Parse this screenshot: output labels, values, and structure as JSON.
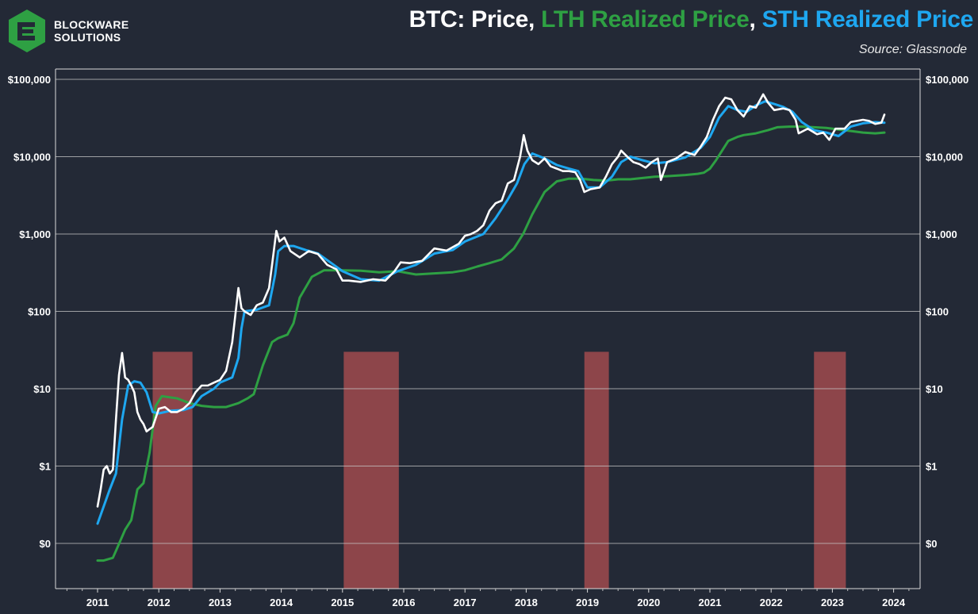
{
  "brand": {
    "line1": "BLOCKWARE",
    "line2": "SOLUTIONS"
  },
  "header": {
    "title_prefix": "BTC: Price, ",
    "lth_label": "LTH Realized Price",
    "comma": ", ",
    "sth_label": "STH Realized Price",
    "source": "Source: Glassnode"
  },
  "colors": {
    "background": "#232936",
    "price": "#ffffff",
    "lth": "#2ea043",
    "sth": "#1ea7f0",
    "shade": "#a04a4e",
    "grid": "#c8c8c8"
  },
  "chart_data": {
    "type": "line",
    "title": "BTC: Price, LTH Realized Price, STH Realized Price",
    "xlabel": "",
    "ylabel": "",
    "yscale": "log",
    "ylim": [
      0.03,
      300000
    ],
    "xlim": [
      2010.35,
      2024.5
    ],
    "grid": true,
    "y_ticks": [
      {
        "value": 0.1,
        "label": "$0"
      },
      {
        "value": 1,
        "label": "$1"
      },
      {
        "value": 10,
        "label": "$10"
      },
      {
        "value": 100,
        "label": "$100"
      },
      {
        "value": 1000,
        "label": "$1,000"
      },
      {
        "value": 10000,
        "label": "$10,000"
      },
      {
        "value": 100000,
        "label": "$100,000"
      }
    ],
    "x_ticks": [
      "2011",
      "2012",
      "2013",
      "2014",
      "2015",
      "2016",
      "2017",
      "2018",
      "2019",
      "2020",
      "2021",
      "2022",
      "2023",
      "2024"
    ],
    "shaded_regions": [
      [
        2011.9,
        2012.55
      ],
      [
        2015.02,
        2015.92
      ],
      [
        2018.95,
        2019.35
      ],
      [
        2022.7,
        2023.22
      ]
    ],
    "series": [
      {
        "name": "Price",
        "x": [
          2011.0,
          2011.05,
          2011.1,
          2011.15,
          2011.2,
          2011.25,
          2011.3,
          2011.35,
          2011.4,
          2011.45,
          2011.5,
          2011.55,
          2011.6,
          2011.65,
          2011.7,
          2011.75,
          2011.8,
          2011.85,
          2011.9,
          2012.0,
          2012.1,
          2012.2,
          2012.3,
          2012.4,
          2012.5,
          2012.6,
          2012.7,
          2012.8,
          2012.9,
          2013.0,
          2013.1,
          2013.2,
          2013.25,
          2013.3,
          2013.35,
          2013.4,
          2013.5,
          2013.6,
          2013.7,
          2013.8,
          2013.85,
          2013.92,
          2013.97,
          2014.05,
          2014.15,
          2014.3,
          2014.45,
          2014.6,
          2014.75,
          2014.9,
          2015.0,
          2015.1,
          2015.3,
          2015.5,
          2015.7,
          2015.85,
          2015.95,
          2016.1,
          2016.3,
          2016.5,
          2016.7,
          2016.9,
          2017.0,
          2017.1,
          2017.2,
          2017.3,
          2017.4,
          2017.5,
          2017.6,
          2017.7,
          2017.8,
          2017.9,
          2017.96,
          2018.02,
          2018.1,
          2018.2,
          2018.3,
          2018.4,
          2018.5,
          2018.6,
          2018.7,
          2018.8,
          2018.88,
          2018.95,
          2019.05,
          2019.2,
          2019.3,
          2019.4,
          2019.5,
          2019.55,
          2019.65,
          2019.75,
          2019.85,
          2019.95,
          2020.05,
          2020.15,
          2020.2,
          2020.3,
          2020.45,
          2020.6,
          2020.75,
          2020.85,
          2020.95,
          2021.05,
          2021.15,
          2021.25,
          2021.35,
          2021.45,
          2021.55,
          2021.65,
          2021.75,
          2021.87,
          2021.95,
          2022.05,
          2022.2,
          2022.3,
          2022.4,
          2022.45,
          2022.6,
          2022.75,
          2022.85,
          2022.95,
          2023.05,
          2023.2,
          2023.3,
          2023.5,
          2023.6,
          2023.7,
          2023.8,
          2023.85
        ],
        "values": [
          0.3,
          0.5,
          0.9,
          1.0,
          0.8,
          0.9,
          4,
          15,
          29,
          14,
          13,
          11,
          9,
          5,
          4,
          3.5,
          2.8,
          3.0,
          3.2,
          5.5,
          5.8,
          5.0,
          5.0,
          5.5,
          6.5,
          9,
          11,
          11,
          12,
          13,
          17,
          40,
          90,
          200,
          110,
          100,
          90,
          120,
          130,
          200,
          400,
          1100,
          800,
          900,
          600,
          500,
          600,
          550,
          400,
          350,
          250,
          250,
          240,
          260,
          250,
          330,
          430,
          420,
          450,
          650,
          610,
          750,
          950,
          1000,
          1100,
          1300,
          2000,
          2500,
          2700,
          4500,
          5000,
          10000,
          19000,
          12000,
          9000,
          8000,
          9500,
          7500,
          7000,
          6500,
          6500,
          6300,
          5000,
          3500,
          3800,
          4000,
          5500,
          8000,
          10000,
          12000,
          10000,
          8500,
          8000,
          7200,
          8500,
          9500,
          5000,
          8500,
          9500,
          11500,
          10500,
          13500,
          18000,
          30000,
          45000,
          58000,
          55000,
          40000,
          33000,
          45000,
          43000,
          64000,
          50000,
          40000,
          42000,
          40000,
          30000,
          20000,
          23000,
          19500,
          20500,
          16500,
          23000,
          23000,
          28000,
          30000,
          29000,
          26500,
          27500,
          35000
        ]
      },
      {
        "name": "STH Realized Price",
        "x": [
          2011.0,
          2011.1,
          2011.2,
          2011.3,
          2011.4,
          2011.5,
          2011.6,
          2011.7,
          2011.8,
          2011.9,
          2012.0,
          2012.2,
          2012.4,
          2012.55,
          2012.7,
          2012.9,
          2013.0,
          2013.2,
          2013.3,
          2013.35,
          2013.4,
          2013.6,
          2013.8,
          2013.9,
          2013.95,
          2014.05,
          2014.2,
          2014.4,
          2014.6,
          2014.8,
          2015.0,
          2015.3,
          2015.6,
          2015.9,
          2016.2,
          2016.5,
          2016.8,
          2017.0,
          2017.3,
          2017.5,
          2017.7,
          2017.85,
          2017.97,
          2018.1,
          2018.3,
          2018.5,
          2018.7,
          2018.85,
          2019.0,
          2019.2,
          2019.4,
          2019.55,
          2019.7,
          2019.9,
          2020.1,
          2020.3,
          2020.6,
          2020.85,
          2021.0,
          2021.15,
          2021.3,
          2021.45,
          2021.6,
          2021.75,
          2021.9,
          2022.05,
          2022.2,
          2022.35,
          2022.5,
          2022.7,
          2022.9,
          2023.1,
          2023.3,
          2023.5,
          2023.7,
          2023.85
        ],
        "values": [
          0.18,
          0.3,
          0.5,
          0.8,
          4,
          11,
          12.5,
          12,
          9,
          5,
          4.8,
          5.2,
          5.3,
          5.8,
          8,
          10,
          12,
          14,
          25,
          60,
          100,
          105,
          120,
          300,
          600,
          700,
          700,
          620,
          560,
          430,
          330,
          260,
          250,
          330,
          400,
          560,
          620,
          800,
          1000,
          1600,
          2800,
          4500,
          8000,
          11000,
          9500,
          7800,
          7000,
          6500,
          4000,
          4000,
          5500,
          8500,
          10000,
          9000,
          8200,
          8500,
          9800,
          13000,
          18000,
          32000,
          45000,
          40000,
          38000,
          46000,
          52000,
          48000,
          44000,
          38000,
          28000,
          22000,
          20500,
          18500,
          24500,
          27000,
          28000,
          27500
        ]
      },
      {
        "name": "LTH Realized Price",
        "x": [
          2011.0,
          2011.1,
          2011.25,
          2011.3,
          2011.45,
          2011.55,
          2011.65,
          2011.75,
          2011.85,
          2011.95,
          2012.05,
          2012.3,
          2012.5,
          2012.7,
          2012.9,
          2013.1,
          2013.3,
          2013.45,
          2013.55,
          2013.7,
          2013.85,
          2013.95,
          2014.1,
          2014.2,
          2014.3,
          2014.5,
          2014.7,
          2015.0,
          2015.3,
          2015.6,
          2015.9,
          2016.2,
          2016.5,
          2016.8,
          2017.0,
          2017.2,
          2017.4,
          2017.6,
          2017.8,
          2017.95,
          2018.1,
          2018.3,
          2018.5,
          2018.7,
          2018.9,
          2019.1,
          2019.3,
          2019.5,
          2019.7,
          2019.9,
          2020.1,
          2020.3,
          2020.6,
          2020.8,
          2020.9,
          2021.0,
          2021.1,
          2021.2,
          2021.3,
          2021.45,
          2021.55,
          2021.75,
          2021.95,
          2022.1,
          2022.3,
          2022.5,
          2022.7,
          2022.9,
          2023.1,
          2023.3,
          2023.5,
          2023.7,
          2023.85
        ],
        "values": [
          0.06,
          0.06,
          0.065,
          0.08,
          0.15,
          0.2,
          0.5,
          0.6,
          1.5,
          6,
          8,
          7.5,
          6.5,
          6,
          5.8,
          5.8,
          6.5,
          7.5,
          8.5,
          20,
          40,
          45,
          50,
          70,
          150,
          280,
          340,
          340,
          335,
          320,
          330,
          300,
          310,
          320,
          340,
          380,
          420,
          470,
          650,
          1000,
          1800,
          3500,
          4800,
          5200,
          5200,
          5000,
          4900,
          5100,
          5100,
          5300,
          5500,
          5600,
          5800,
          6000,
          6200,
          7000,
          9000,
          12000,
          16000,
          18000,
          19000,
          20000,
          22000,
          24000,
          24500,
          24500,
          24000,
          23500,
          22500,
          21500,
          20500,
          20000,
          20500
        ]
      }
    ]
  }
}
